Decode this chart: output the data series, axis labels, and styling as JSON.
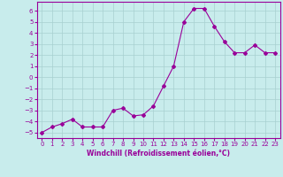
{
  "x": [
    0,
    1,
    2,
    3,
    4,
    5,
    6,
    7,
    8,
    9,
    10,
    11,
    12,
    13,
    14,
    15,
    16,
    17,
    18,
    19,
    20,
    21,
    22,
    23
  ],
  "y": [
    -5.0,
    -4.5,
    -4.2,
    -3.8,
    -4.5,
    -4.5,
    -4.5,
    -3.0,
    -2.8,
    -3.5,
    -3.4,
    -2.6,
    -0.8,
    1.0,
    5.0,
    6.2,
    6.2,
    4.6,
    3.2,
    2.2,
    2.2,
    2.9,
    2.2,
    2.2
  ],
  "line_color": "#990099",
  "marker": "D",
  "marker_size": 2,
  "background_color": "#c8ecec",
  "grid_color": "#a8d0d0",
  "ylim": [
    -5.5,
    6.8
  ],
  "xlim": [
    -0.5,
    23.5
  ],
  "yticks": [
    -5,
    -4,
    -3,
    -2,
    -1,
    0,
    1,
    2,
    3,
    4,
    5,
    6
  ],
  "xticks": [
    0,
    1,
    2,
    3,
    4,
    5,
    6,
    7,
    8,
    9,
    10,
    11,
    12,
    13,
    14,
    15,
    16,
    17,
    18,
    19,
    20,
    21,
    22,
    23
  ],
  "xlabel": "Windchill (Refroidissement éolien,°C)",
  "tick_color": "#990099",
  "spine_color": "#990099",
  "label_fontsize": 5.0,
  "xlabel_fontsize": 5.5
}
